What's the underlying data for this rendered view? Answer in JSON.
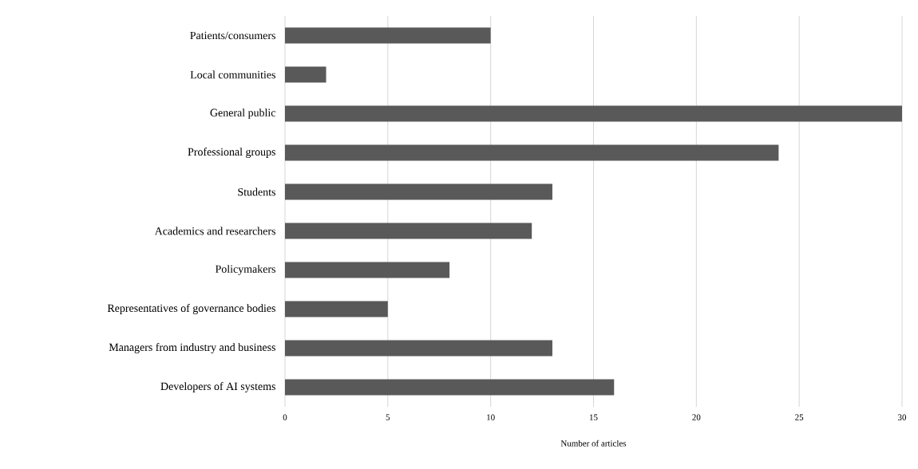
{
  "chart_data": {
    "type": "bar",
    "orientation": "horizontal",
    "xlabel": "Number of articles",
    "categories": [
      "Patients/consumers",
      "Local communities",
      "General public",
      "Professional groups",
      "Students",
      "Academics and researchers",
      "Policymakers",
      "Representatives of governance bodies",
      "Managers from industry and business",
      "Developers of AI systems"
    ],
    "values": [
      10,
      2,
      30,
      24,
      13,
      12,
      8,
      5,
      13,
      16
    ],
    "color": "#595959",
    "xlim": [
      0,
      30
    ],
    "xticks": [
      0,
      5,
      10,
      15,
      20,
      25,
      30
    ],
    "grid": "x"
  }
}
